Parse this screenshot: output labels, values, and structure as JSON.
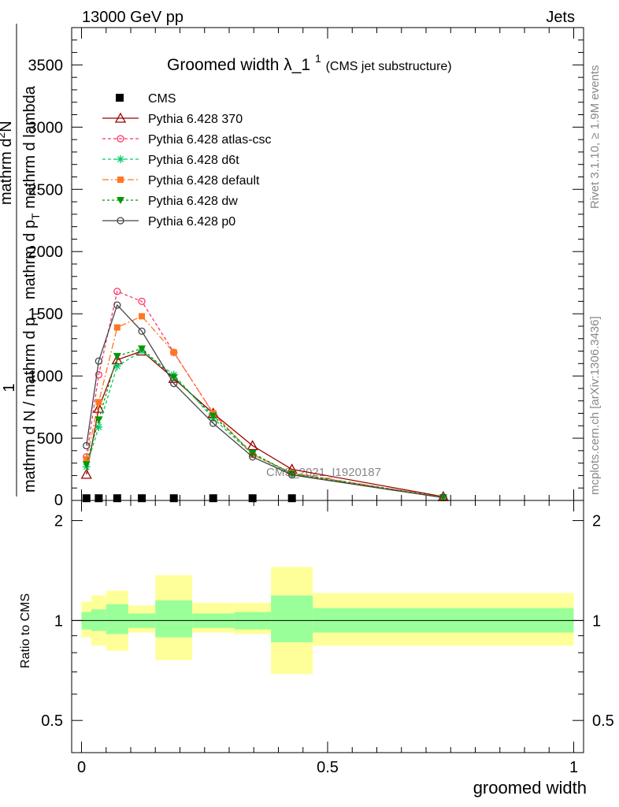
{
  "header": {
    "left": "13000 GeV pp",
    "right": "Jets"
  },
  "title": {
    "main": "Groomed width",
    "symbol": "λ_1",
    "superscript": "1",
    "sub": "(CMS jet substructure)"
  },
  "ylabel": {
    "one": "1",
    "denominator": "mathrm d N / mathrm d p",
    "denominator_sub": "T",
    "numerator": "mathrm d",
    "numerator_sup": "2",
    "numerator_tail": "N",
    "numerator2": "mathrm d p",
    "numerator2_sub": "T",
    "numerator2_tail": " mathrm d lambda"
  },
  "side_labels": {
    "rivet": "Rivet 3.1.10, ≥ 1.9M events",
    "mcplots": "mcplots.cern.ch [arXiv:1306.3436]"
  },
  "watermark": "CMS_2021_I1920187",
  "ratio_ylabel": "Ratio to CMS",
  "xlabel": "groomed width",
  "colors": {
    "yellow_band": "#ffff99",
    "green_band": "#99ff99",
    "370": "#990000",
    "atlas-csc": "#ff3366",
    "d6t": "#00cc66",
    "default": "#ff7722",
    "dw": "#009900",
    "p0": "#444444"
  },
  "chart_data": {
    "type": "line",
    "main_panel": {
      "xlim": [
        -0.02,
        1.02
      ],
      "ylim": [
        0,
        3800
      ],
      "y_ticks": [
        "500",
        "1000",
        "1500",
        "2000",
        "2500",
        "3000",
        "3500"
      ],
      "y_tick_values": [
        500,
        1000,
        1500,
        2000,
        2500,
        3000,
        3500
      ],
      "zero_label": "0"
    },
    "ratio_panel": {
      "ylim": [
        0.4,
        2.3
      ],
      "y_ticks": [
        "0.5",
        "1",
        "2"
      ],
      "y_tick_values": [
        0.5,
        1,
        2
      ]
    },
    "x_ticks": [
      "0",
      "0.5",
      "1"
    ],
    "x_tick_values": [
      0,
      0.5,
      1
    ],
    "cms": {
      "name": "CMS",
      "x": [
        0.01,
        0.035,
        0.0725,
        0.1225,
        0.1875,
        0.2675,
        0.3475,
        0.4275
      ],
      "y": [
        5,
        5,
        5,
        5,
        5,
        5,
        5,
        5
      ]
    },
    "ratio_bands": [
      {
        "x0": 0.0,
        "x1": 0.02,
        "g": [
          0.94,
          1.06
        ],
        "yl": [
          0.89,
          1.14
        ]
      },
      {
        "x0": 0.02,
        "x1": 0.05,
        "g": [
          0.93,
          1.08
        ],
        "yl": [
          0.84,
          1.19
        ]
      },
      {
        "x0": 0.05,
        "x1": 0.095,
        "g": [
          0.91,
          1.12
        ],
        "yl": [
          0.81,
          1.23
        ]
      },
      {
        "x0": 0.095,
        "x1": 0.15,
        "g": [
          0.95,
          1.05
        ],
        "yl": [
          0.92,
          1.11
        ]
      },
      {
        "x0": 0.15,
        "x1": 0.225,
        "g": [
          0.89,
          1.15
        ],
        "yl": [
          0.76,
          1.37
        ]
      },
      {
        "x0": 0.225,
        "x1": 0.31,
        "g": [
          0.95,
          1.05
        ],
        "yl": [
          0.92,
          1.13
        ]
      },
      {
        "x0": 0.31,
        "x1": 0.385,
        "g": [
          0.94,
          1.06
        ],
        "yl": [
          0.91,
          1.13
        ]
      },
      {
        "x0": 0.385,
        "x1": 0.47,
        "g": [
          0.86,
          1.19
        ],
        "yl": [
          0.69,
          1.45
        ]
      },
      {
        "x0": 0.47,
        "x1": 1.0,
        "g": [
          0.92,
          1.09
        ],
        "yl": [
          0.84,
          1.21
        ]
      }
    ],
    "series": [
      {
        "key": "370",
        "name": "Pythia 6.428 370",
        "marker": "triangle-open",
        "dash": "",
        "x": [
          0.01,
          0.035,
          0.0725,
          0.1225,
          0.1875,
          0.2675,
          0.3475,
          0.4275,
          0.735
        ],
        "y": [
          210,
          740,
          1130,
          1200,
          980,
          700,
          440,
          250,
          30
        ]
      },
      {
        "key": "atlas-csc",
        "name": "Pythia 6.428 atlas-csc",
        "marker": "circle-open",
        "dash": "4,3",
        "x": [
          0.01,
          0.035,
          0.0725,
          0.1225,
          0.1875,
          0.2675,
          0.3475,
          0.4275,
          0.735
        ],
        "y": [
          350,
          1010,
          1680,
          1600,
          1190,
          700,
          370,
          220,
          25
        ]
      },
      {
        "key": "d6t",
        "name": "Pythia 6.428 d6t",
        "marker": "star",
        "dash": "4,3",
        "x": [
          0.01,
          0.035,
          0.0725,
          0.1225,
          0.1875,
          0.2675,
          0.3475,
          0.4275,
          0.735
        ],
        "y": [
          270,
          590,
          1080,
          1200,
          1010,
          660,
          370,
          210,
          25
        ]
      },
      {
        "key": "default",
        "name": "Pythia 6.428 default",
        "marker": "square",
        "dash": "8,3,2,3",
        "x": [
          0.01,
          0.035,
          0.0725,
          0.1225,
          0.1875,
          0.2675,
          0.3475,
          0.4275,
          0.735
        ],
        "y": [
          330,
          790,
          1390,
          1480,
          1190,
          700,
          370,
          220,
          25
        ]
      },
      {
        "key": "dw",
        "name": "Pythia 6.428 dw",
        "marker": "triangle-down",
        "dash": "3,3",
        "x": [
          0.01,
          0.035,
          0.0725,
          0.1225,
          0.1875,
          0.2675,
          0.3475,
          0.4275,
          0.735
        ],
        "y": [
          290,
          650,
          1160,
          1220,
          990,
          680,
          380,
          215,
          25
        ]
      },
      {
        "key": "p0",
        "name": "Pythia 6.428 p0",
        "marker": "circle-open",
        "dash": "",
        "x": [
          0.01,
          0.035,
          0.0725,
          0.1225,
          0.1875,
          0.2675,
          0.3475,
          0.4275,
          0.735
        ],
        "y": [
          440,
          1120,
          1570,
          1360,
          940,
          620,
          350,
          205,
          22
        ]
      }
    ]
  }
}
